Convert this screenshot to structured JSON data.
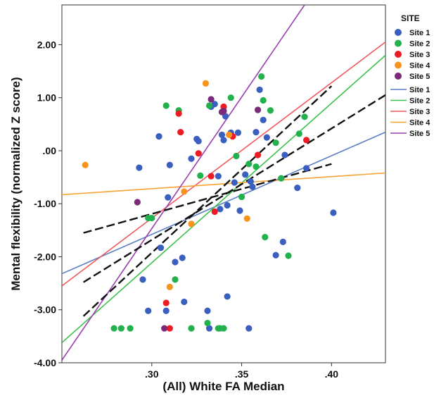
{
  "chart_data": {
    "type": "scatter",
    "xlabel": "(All) White FA Median",
    "ylabel": "Mental flexibility (normalized Z score)",
    "xlim": [
      0.25,
      0.43
    ],
    "ylim": [
      -4.0,
      2.75
    ],
    "x_ticks": [
      {
        "value": 0.3,
        "label": ".30"
      },
      {
        "value": 0.35,
        "label": ".35"
      },
      {
        "value": 0.4,
        "label": ".40"
      }
    ],
    "y_ticks": [
      {
        "value": 2.0,
        "label": "2.00"
      },
      {
        "value": 1.0,
        "label": "1.00"
      },
      {
        "value": 0.0,
        "label": ".00"
      },
      {
        "value": -1.0,
        "label": "-1.00"
      },
      {
        "value": -2.0,
        "label": "-2.00"
      },
      {
        "value": -3.0,
        "label": "-3.00"
      },
      {
        "value": -4.0,
        "label": "-4.00"
      }
    ],
    "legend_title": "SITE",
    "legend_position": "right",
    "series": [
      {
        "name": "Site 1",
        "color": "#3a5fbf",
        "points": [
          [
            0.293,
            -0.32
          ],
          [
            0.295,
            -2.43
          ],
          [
            0.298,
            -3.02
          ],
          [
            0.304,
            0.27
          ],
          [
            0.305,
            -1.83
          ],
          [
            0.308,
            -3.02
          ],
          [
            0.309,
            -0.88
          ],
          [
            0.31,
            -0.27
          ],
          [
            0.313,
            -2.1
          ],
          [
            0.317,
            -2.02
          ],
          [
            0.318,
            -2.85
          ],
          [
            0.322,
            -0.15
          ],
          [
            0.325,
            0.22
          ],
          [
            0.326,
            0.18
          ],
          [
            0.331,
            -3.02
          ],
          [
            0.332,
            -3.35
          ],
          [
            0.333,
            0.83
          ],
          [
            0.335,
            0.88
          ],
          [
            0.337,
            -0.48
          ],
          [
            0.338,
            -1.1
          ],
          [
            0.339,
            0.3
          ],
          [
            0.34,
            0.2
          ],
          [
            0.341,
            0.65
          ],
          [
            0.342,
            -2.75
          ],
          [
            0.342,
            -1.03
          ],
          [
            0.344,
            0.34
          ],
          [
            0.346,
            -0.6
          ],
          [
            0.348,
            0.34
          ],
          [
            0.349,
            -1.13
          ],
          [
            0.352,
            -0.45
          ],
          [
            0.354,
            -3.35
          ],
          [
            0.355,
            -0.58
          ],
          [
            0.356,
            -0.68
          ],
          [
            0.358,
            0.35
          ],
          [
            0.36,
            1.15
          ],
          [
            0.362,
            0.58
          ],
          [
            0.364,
            0.25
          ],
          [
            0.369,
            -1.97
          ],
          [
            0.373,
            -1.72
          ],
          [
            0.374,
            -0.08
          ],
          [
            0.381,
            -0.7
          ],
          [
            0.386,
            -0.33
          ],
          [
            0.401,
            -1.17
          ]
        ]
      },
      {
        "name": "Site 2",
        "color": "#22b14c",
        "points": [
          [
            0.279,
            -3.35
          ],
          [
            0.283,
            -3.35
          ],
          [
            0.288,
            -3.35
          ],
          [
            0.298,
            -1.27
          ],
          [
            0.3,
            -1.27
          ],
          [
            0.308,
            0.85
          ],
          [
            0.313,
            -2.43
          ],
          [
            0.315,
            0.76
          ],
          [
            0.322,
            -3.35
          ],
          [
            0.327,
            -0.47
          ],
          [
            0.331,
            -3.25
          ],
          [
            0.332,
            0.85
          ],
          [
            0.337,
            -3.35
          ],
          [
            0.338,
            -3.35
          ],
          [
            0.34,
            -3.35
          ],
          [
            0.344,
            1.0
          ],
          [
            0.347,
            -0.1
          ],
          [
            0.35,
            -0.87
          ],
          [
            0.354,
            -0.25
          ],
          [
            0.358,
            -0.3
          ],
          [
            0.361,
            1.4
          ],
          [
            0.362,
            0.95
          ],
          [
            0.363,
            -1.63
          ],
          [
            0.366,
            0.76
          ],
          [
            0.369,
            0.15
          ],
          [
            0.372,
            -0.52
          ],
          [
            0.376,
            -1.98
          ],
          [
            0.382,
            0.32
          ],
          [
            0.385,
            0.64
          ]
        ]
      },
      {
        "name": "Site 3",
        "color": "#ed1c24",
        "points": [
          [
            0.308,
            -2.87
          ],
          [
            0.31,
            -3.35
          ],
          [
            0.315,
            0.7
          ],
          [
            0.316,
            0.35
          ],
          [
            0.326,
            -0.05
          ],
          [
            0.333,
            -0.48
          ],
          [
            0.335,
            -1.15
          ],
          [
            0.34,
            0.83
          ],
          [
            0.345,
            0.27
          ],
          [
            0.359,
            -0.08
          ],
          [
            0.386,
            0.2
          ]
        ]
      },
      {
        "name": "Site 4",
        "color": "#f7941d",
        "points": [
          [
            0.263,
            -0.27
          ],
          [
            0.31,
            -2.57
          ],
          [
            0.318,
            -0.77
          ],
          [
            0.322,
            -1.38
          ],
          [
            0.33,
            1.27
          ],
          [
            0.343,
            0.3
          ],
          [
            0.353,
            -1.28
          ]
        ]
      },
      {
        "name": "Site 5",
        "color": "#7b2a7a",
        "points": [
          [
            0.292,
            -0.97
          ],
          [
            0.307,
            -3.35
          ],
          [
            0.333,
            0.97
          ],
          [
            0.339,
            0.73
          ],
          [
            0.34,
            0.75
          ],
          [
            0.359,
            0.77
          ]
        ]
      }
    ],
    "fit_lines": [
      {
        "name": "Site 1",
        "color": "#5b7fc4",
        "from": [
          0.25,
          -2.32
        ],
        "to": [
          0.43,
          0.35
        ]
      },
      {
        "name": "Site 2",
        "color": "#3cc14a",
        "from": [
          0.25,
          -3.62
        ],
        "to": [
          0.43,
          1.8
        ]
      },
      {
        "name": "Site 3",
        "color": "#f05a5a",
        "from": [
          0.25,
          -2.55
        ],
        "to": [
          0.43,
          2.05
        ]
      },
      {
        "name": "Site 4",
        "color": "#f7a233",
        "from": [
          0.25,
          -0.83
        ],
        "to": [
          0.43,
          -0.42
        ]
      },
      {
        "name": "Site 5",
        "color": "#9b3fb0",
        "from": [
          0.25,
          -3.95
        ],
        "to": [
          0.385,
          2.75
        ]
      }
    ],
    "ci_lines": [
      {
        "from": [
          0.262,
          -1.55
        ],
        "to": [
          0.4,
          -0.25
        ]
      },
      {
        "from": [
          0.262,
          -2.48
        ],
        "to": [
          0.43,
          1.05
        ]
      },
      {
        "from": [
          0.262,
          -3.12
        ],
        "to": [
          0.4,
          1.22
        ]
      }
    ]
  }
}
